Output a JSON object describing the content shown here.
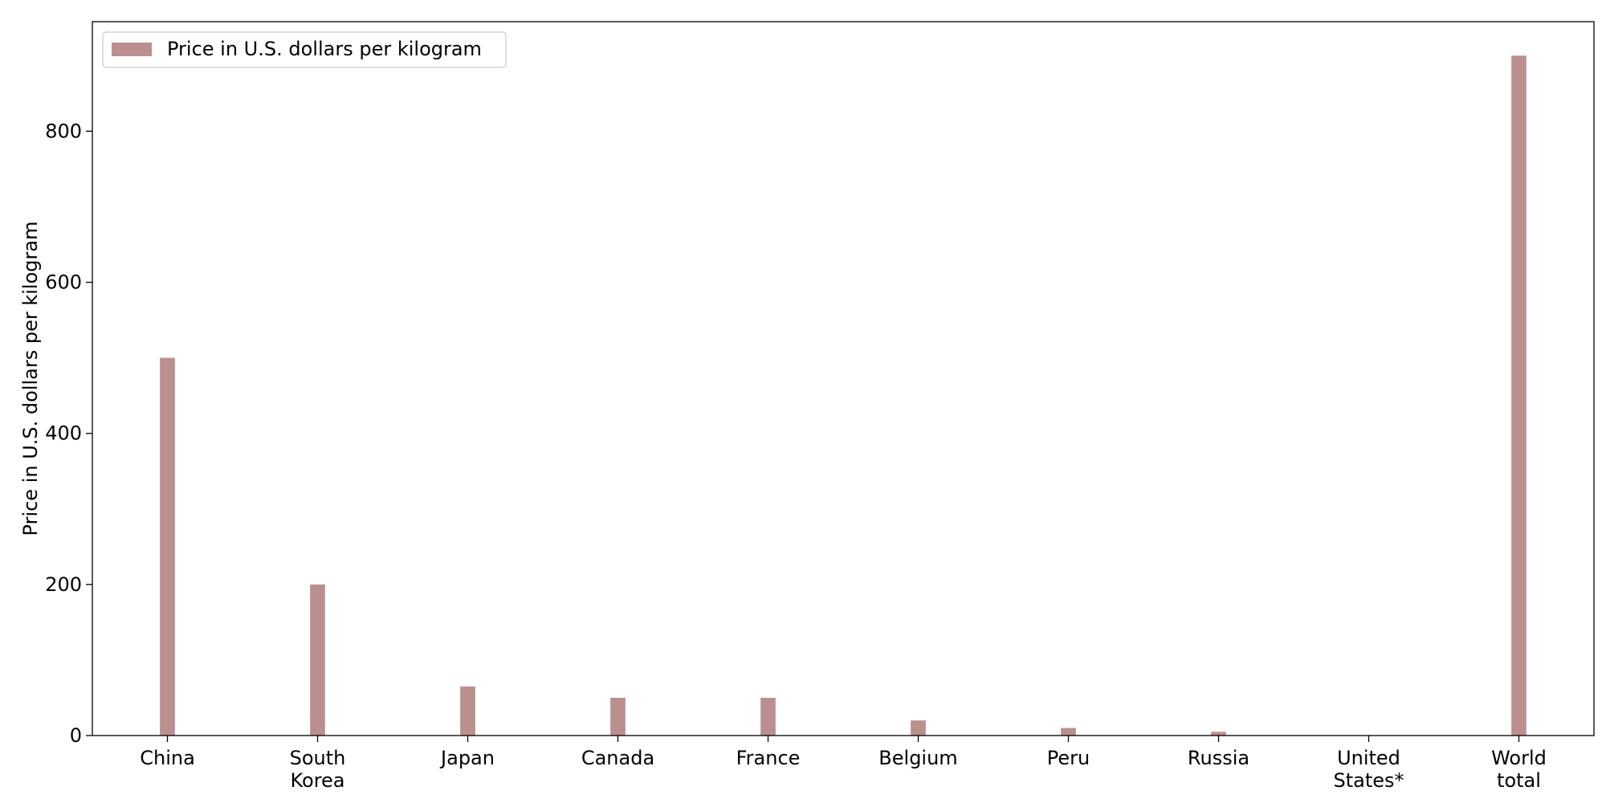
{
  "chart_data": {
    "type": "bar",
    "categories": [
      [
        "China"
      ],
      [
        "South",
        "Korea"
      ],
      [
        "Japan"
      ],
      [
        "Canada"
      ],
      [
        "France"
      ],
      [
        "Belgium"
      ],
      [
        "Peru"
      ],
      [
        "Russia"
      ],
      [
        "United",
        "States*"
      ],
      [
        "World",
        "total"
      ]
    ],
    "series": [
      {
        "name": "Price in U.S. dollars per kilogram",
        "color": "#bc8f8f",
        "values": [
          500,
          200,
          65,
          50,
          50,
          20,
          10,
          5,
          0,
          900
        ]
      }
    ],
    "xlabel": "",
    "ylabel": "Price in U.S. dollars per kilogram",
    "ylim": [
      0,
      945
    ],
    "yticks": [
      0,
      200,
      400,
      600,
      800
    ],
    "legend": "top-left",
    "grid": false
  }
}
